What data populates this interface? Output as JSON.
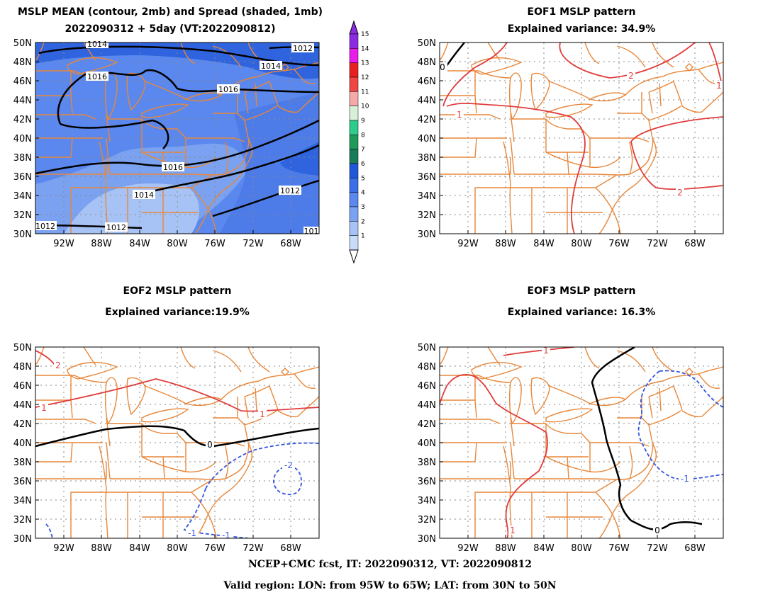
{
  "panels": {
    "mean": {
      "title_line1": "MSLP MEAN (contour, 2mb) and Spread (shaded, 1mb)",
      "title_line2": "2022090312 + 5day (VT:2022090812)",
      "contour_labels": [
        "1014",
        "1012",
        "1014",
        "1016",
        "1016",
        "1016",
        "1014",
        "1012",
        "1012",
        "1012",
        "101"
      ]
    },
    "eof1": {
      "title_line1": "EOF1 MSLP pattern",
      "title_line2": "Explained variance: 34.9%",
      "contour_labels": [
        "0",
        "2",
        "1",
        "1",
        "2"
      ]
    },
    "eof2": {
      "title_line1": "EOF2 MSLP pattern",
      "title_line2": "Explained variance:19.9%",
      "contour_labels": [
        "2",
        "1",
        "1",
        "0",
        "-2",
        "-1",
        "-1"
      ]
    },
    "eof3": {
      "title_line1": "EOF3 MSLP pattern",
      "title_line2": "Explained variance: 16.3%",
      "contour_labels": [
        "1",
        "1",
        "-1",
        "0"
      ]
    }
  },
  "axes": {
    "lat_labels": [
      "50N",
      "48N",
      "46N",
      "44N",
      "42N",
      "40N",
      "38N",
      "36N",
      "34N",
      "32N",
      "30N"
    ],
    "lon_labels": [
      "92W",
      "88W",
      "84W",
      "80W",
      "76W",
      "72W",
      "68W"
    ]
  },
  "colorbar": {
    "labels": [
      "15",
      "14",
      "13",
      "12",
      "11",
      "10",
      "9",
      "8",
      "7",
      "6",
      "5",
      "4",
      "3",
      "2",
      "1"
    ],
    "colors": [
      "#8a2be2",
      "#e81ee8",
      "#e82020",
      "#f04545",
      "#f5aaaa",
      "#d8efd8",
      "#2ecc8c",
      "#1e9a5a",
      "#1a7a5a",
      "#1f57d8",
      "#3a6fe8",
      "#5a88ee",
      "#7aa2f0",
      "#a7c3f5",
      "#c8dcfa"
    ]
  },
  "colors": {
    "boundary": "#e8873a",
    "positive": "#e03c3c",
    "negative": "#3355dd",
    "zero": "#000000"
  },
  "footer": {
    "line1": "NCEP+CMC fcst, IT: 2022090312, VT: 2022090812",
    "line2": "Valid region: LON: from 95W to 65W; LAT: from 30N to 50N"
  }
}
